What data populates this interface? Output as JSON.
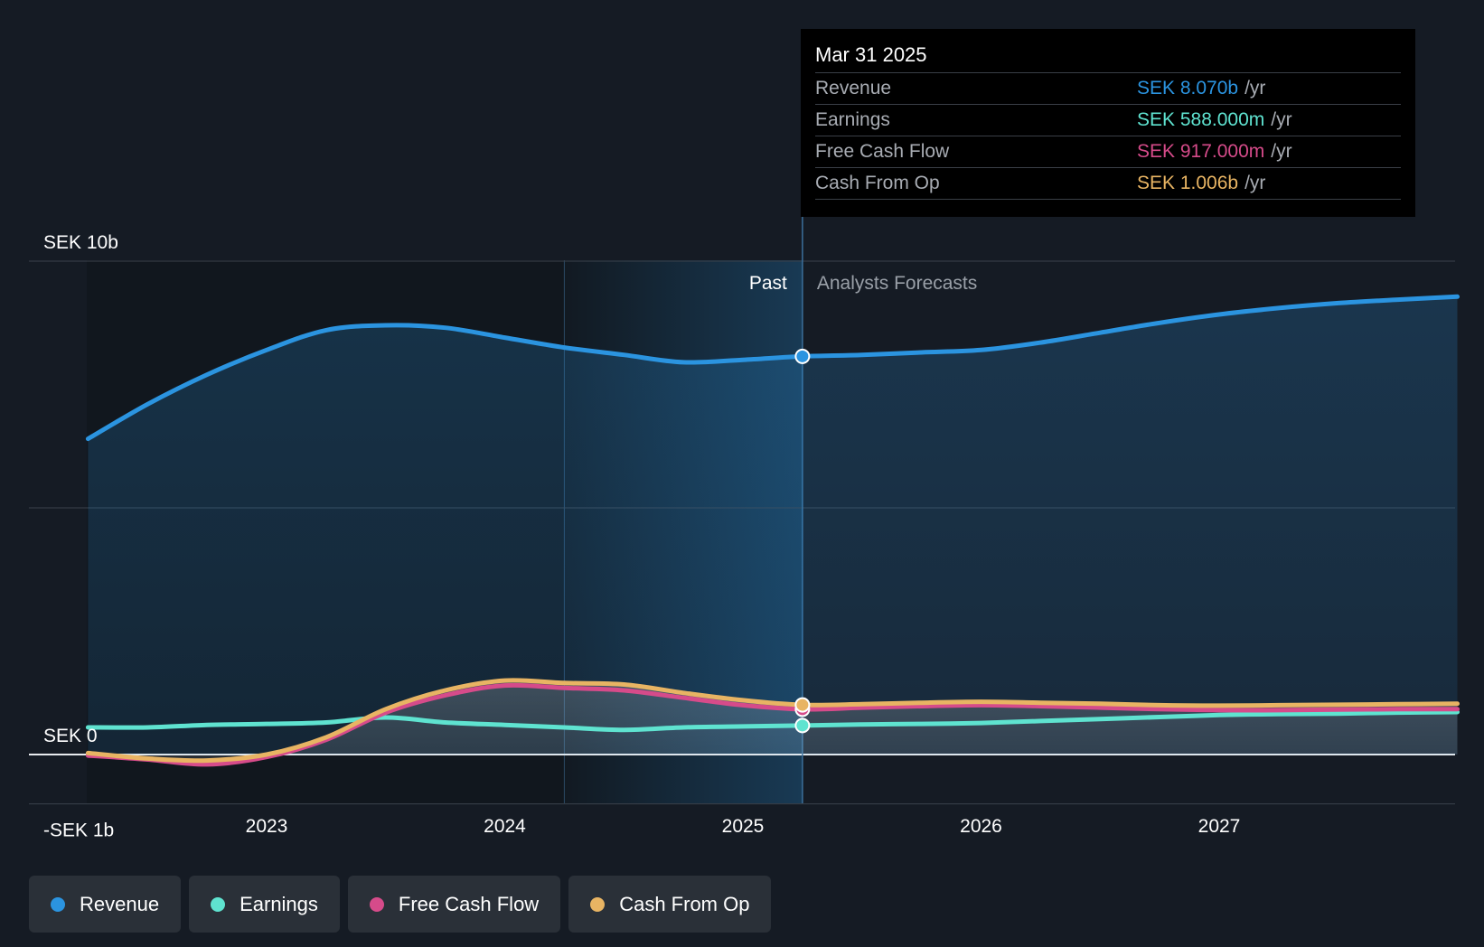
{
  "chart_data": {
    "type": "line",
    "y_axis": {
      "ticks": [
        "SEK 10b",
        "SEK 0",
        "-SEK 1b"
      ],
      "ylim": [
        -1,
        10
      ],
      "unit": "SEK b"
    },
    "x_axis": {
      "ticks": [
        "2023",
        "2024",
        "2025",
        "2026",
        "2027"
      ],
      "tick_values": [
        2023,
        2024,
        2025,
        2026,
        2027
      ],
      "xlim": [
        2022.0,
        2028.0
      ]
    },
    "regions": {
      "past_label": "Past",
      "forecast_label": "Analysts Forecasts",
      "divider_x": 2025.25,
      "shade_start_x": 2024.25
    },
    "series": [
      {
        "name": "Revenue",
        "color": "#2b94e0",
        "x": [
          2022.25,
          2022.5,
          2022.75,
          2023.0,
          2023.25,
          2023.5,
          2023.75,
          2024.0,
          2024.25,
          2024.5,
          2024.75,
          2025.0,
          2025.25,
          2025.5,
          2025.75,
          2026.0,
          2026.25,
          2026.5,
          2026.75,
          2027.0,
          2027.25,
          2027.5,
          2027.75,
          2028.0
        ],
        "values": [
          6.4,
          7.1,
          7.7,
          8.2,
          8.6,
          8.7,
          8.65,
          8.45,
          8.25,
          8.1,
          7.95,
          8.0,
          8.07,
          8.1,
          8.15,
          8.2,
          8.35,
          8.55,
          8.75,
          8.92,
          9.05,
          9.15,
          9.22,
          9.28
        ]
      },
      {
        "name": "Earnings",
        "color": "#5fe3d0",
        "x": [
          2022.25,
          2022.5,
          2022.75,
          2023.0,
          2023.25,
          2023.5,
          2023.75,
          2024.0,
          2024.25,
          2024.5,
          2024.75,
          2025.0,
          2025.25,
          2025.5,
          2025.75,
          2026.0,
          2026.25,
          2026.5,
          2026.75,
          2027.0,
          2027.25,
          2027.5,
          2027.75,
          2028.0
        ],
        "values": [
          0.55,
          0.55,
          0.6,
          0.62,
          0.65,
          0.75,
          0.65,
          0.6,
          0.55,
          0.5,
          0.55,
          0.57,
          0.588,
          0.61,
          0.62,
          0.64,
          0.68,
          0.72,
          0.76,
          0.8,
          0.82,
          0.83,
          0.85,
          0.86
        ]
      },
      {
        "name": "Free Cash Flow",
        "color": "#d64b8a",
        "x": [
          2022.25,
          2022.5,
          2022.75,
          2023.0,
          2023.25,
          2023.5,
          2023.75,
          2024.0,
          2024.25,
          2024.5,
          2024.75,
          2025.0,
          2025.25,
          2025.5,
          2025.75,
          2026.0,
          2026.25,
          2026.5,
          2026.75,
          2027.0,
          2027.25,
          2027.5,
          2027.75,
          2028.0
        ],
        "values": [
          -0.02,
          -0.1,
          -0.2,
          -0.05,
          0.3,
          0.85,
          1.2,
          1.4,
          1.35,
          1.3,
          1.15,
          1.0,
          0.917,
          0.95,
          0.98,
          1.0,
          0.98,
          0.95,
          0.92,
          0.9,
          0.9,
          0.91,
          0.92,
          0.92
        ]
      },
      {
        "name": "Cash From Op",
        "color": "#e8b463",
        "x": [
          2022.25,
          2022.5,
          2022.75,
          2023.0,
          2023.25,
          2023.5,
          2023.75,
          2024.0,
          2024.25,
          2024.5,
          2024.75,
          2025.0,
          2025.25,
          2025.5,
          2025.75,
          2026.0,
          2026.25,
          2026.5,
          2026.75,
          2027.0,
          2027.25,
          2027.5,
          2027.75,
          2028.0
        ],
        "values": [
          0.03,
          -0.08,
          -0.12,
          0.0,
          0.35,
          0.92,
          1.3,
          1.5,
          1.45,
          1.42,
          1.25,
          1.1,
          1.006,
          1.02,
          1.05,
          1.07,
          1.05,
          1.03,
          1.0,
          0.99,
          1.0,
          1.01,
          1.02,
          1.03
        ]
      }
    ],
    "highlight_x": 2025.25,
    "grid": true,
    "legend_position": "bottom-left"
  },
  "tooltip": {
    "date": "Mar 31 2025",
    "rows": [
      {
        "label": "Revenue",
        "value": "SEK 8.070b",
        "unit": "/yr",
        "color": "#2b94e0"
      },
      {
        "label": "Earnings",
        "value": "SEK 588.000m",
        "unit": "/yr",
        "color": "#5fe3d0"
      },
      {
        "label": "Free Cash Flow",
        "value": "SEK 917.000m",
        "unit": "/yr",
        "color": "#d64b8a"
      },
      {
        "label": "Cash From Op",
        "value": "SEK 1.006b",
        "unit": "/yr",
        "color": "#e8b463"
      }
    ]
  },
  "legend": [
    {
      "label": "Revenue",
      "color": "#2b94e0"
    },
    {
      "label": "Earnings",
      "color": "#5fe3d0"
    },
    {
      "label": "Free Cash Flow",
      "color": "#d64b8a"
    },
    {
      "label": "Cash From Op",
      "color": "#e8b463"
    }
  ]
}
